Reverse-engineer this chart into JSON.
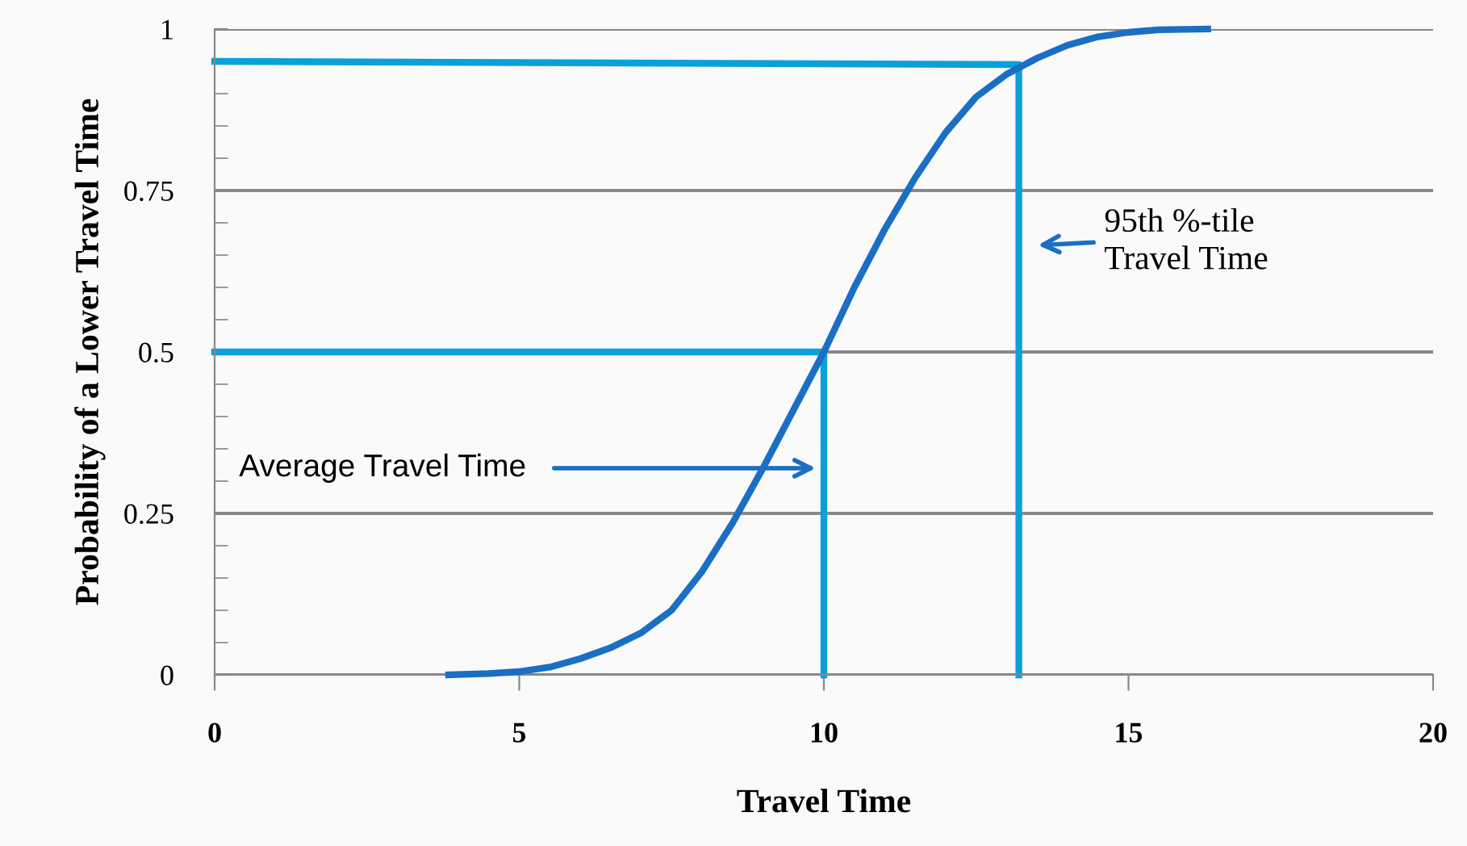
{
  "chart_data": {
    "type": "line",
    "xlabel": "Travel Time",
    "ylabel": "Probability of a Lower Travel Time",
    "series": [
      {
        "color": "#1a6fc4",
        "x": [
          3.84,
          4.5,
          5,
          5.5,
          6,
          6.5,
          7,
          7.5,
          8,
          8.5,
          9,
          9.5,
          10,
          10.5,
          11,
          11.5,
          12,
          12.5,
          13,
          13.5,
          14,
          14.5,
          15,
          15.5,
          16.3
        ],
        "values": [
          0,
          0.002,
          0.005,
          0.012,
          0.025,
          0.042,
          0.065,
          0.1,
          0.16,
          0.235,
          0.32,
          0.41,
          0.5,
          0.6,
          0.69,
          0.77,
          0.84,
          0.895,
          0.93,
          0.955,
          0.975,
          0.988,
          0.995,
          0.999,
          1
        ]
      },
      {
        "color": "#0aa0dc",
        "x": [
          0,
          10,
          10
        ],
        "values": [
          0.5,
          0.5,
          0
        ]
      },
      {
        "color": "#0aa0dc",
        "x": [
          0,
          13.2,
          13.2
        ],
        "values": [
          0.95,
          0.945,
          0
        ]
      }
    ],
    "xlim": [
      0,
      20
    ],
    "xticks": [
      0,
      5,
      10,
      15,
      20
    ],
    "ylim": [
      0,
      1
    ],
    "yticks": [
      0,
      0.25,
      0.5,
      0.75,
      1
    ],
    "grid": "y",
    "marker": "none",
    "line_style": "solid",
    "annotations": [
      "Average Travel Time",
      "95th %-tile\nTravel Time"
    ]
  }
}
